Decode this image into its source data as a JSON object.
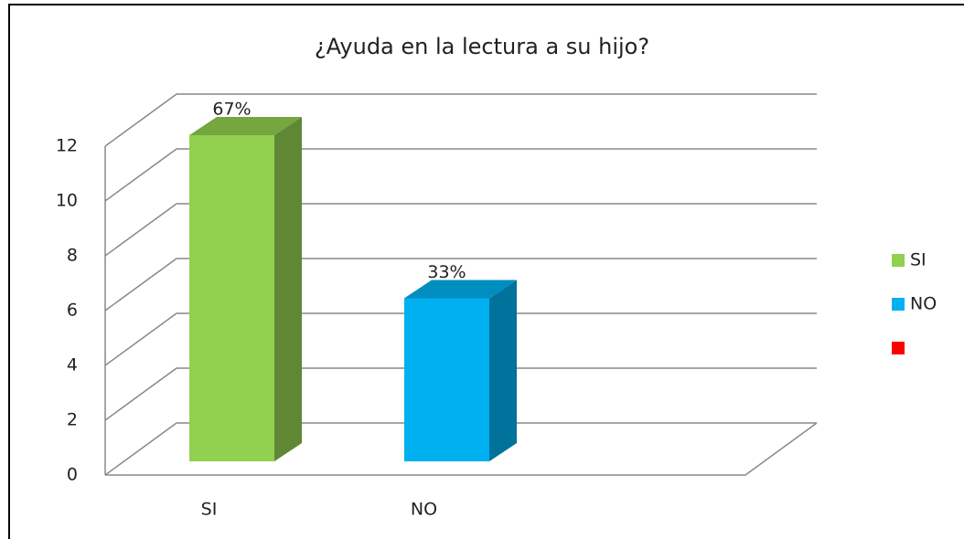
{
  "chart_data": {
    "type": "bar3d",
    "title": "¿Ayuda en la lectura a su hijo?",
    "categories": [
      "SI",
      "NO",
      null
    ],
    "values": [
      12,
      6,
      null
    ],
    "value_labels": [
      "67%",
      "33%",
      null
    ],
    "colors": [
      "#92d050",
      "#00b0f0",
      "#ff0000"
    ],
    "ylim": [
      0,
      12
    ],
    "yticks": [
      0,
      2,
      4,
      6,
      8,
      10,
      12
    ],
    "grid": true,
    "legend": "right"
  }
}
